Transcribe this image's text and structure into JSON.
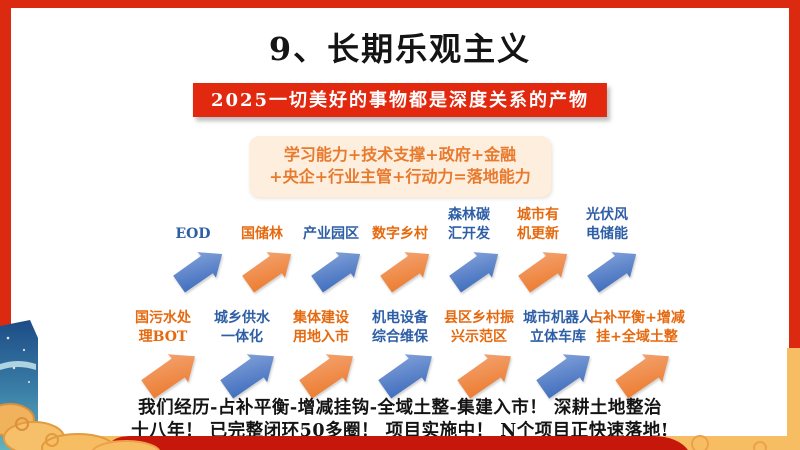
{
  "slide": {
    "title": "9、长期乐观主义",
    "banner": "2025一切美好的事物都是深度关系的产物",
    "capability_box": {
      "line1": "学习能力+技术支撑+政府+金融",
      "line2": "+央企+行业主管+行动力=落地能力"
    },
    "rows": [
      {
        "items": [
          {
            "lines": [
              "EOD"
            ],
            "color": "blue"
          },
          {
            "lines": [
              "国储林"
            ],
            "color": "orange"
          },
          {
            "lines": [
              "产业园区"
            ],
            "color": "blue"
          },
          {
            "lines": [
              "数字乡村"
            ],
            "color": "orange"
          },
          {
            "lines": [
              "森林碳",
              "汇开发"
            ],
            "color": "blue"
          },
          {
            "lines": [
              "城市有",
              "机更新"
            ],
            "color": "orange"
          },
          {
            "lines": [
              "光伏风",
              "电储能"
            ],
            "color": "blue"
          }
        ]
      },
      {
        "items": [
          {
            "lines": [
              "国污水处",
              "理BOT"
            ],
            "color": "orange"
          },
          {
            "lines": [
              "城乡供水",
              "一体化"
            ],
            "color": "blue"
          },
          {
            "lines": [
              "集体建设",
              "用地入市"
            ],
            "color": "orange"
          },
          {
            "lines": [
              "机电设备",
              "综合维保"
            ],
            "color": "blue"
          },
          {
            "lines": [
              "县区乡村振",
              "兴示范区"
            ],
            "color": "orange"
          },
          {
            "lines": [
              "城市机器人",
              "立体车库"
            ],
            "color": "blue"
          },
          {
            "lines": [
              "占补平衡+增减",
              "挂+全域土整"
            ],
            "color": "orange"
          }
        ]
      }
    ],
    "footer": {
      "line1": "我们经历-占补平衡-增减挂钩-全域土整-集建入市！ 深耕土地整治",
      "line2": "十八年！ 已完整闭环50多圈！ 项目实施中！ N个项目正快速落地!"
    },
    "colors": {
      "frame_red": "#dc2a10",
      "banner_red": "#e2290f",
      "ribbon_dark_red": "#c6170b",
      "gold": "#f6bd62",
      "box_bg": "#fdeede",
      "box_text_orange": "#e87a2e",
      "label_blue": "#2e5ea6",
      "label_orange": "#e5690f",
      "arrow_blue_light": "#8aa7dc",
      "arrow_blue_dark": "#3f6dbd",
      "arrow_orange_light": "#f4a777",
      "arrow_orange_dark": "#ec7c30"
    }
  }
}
